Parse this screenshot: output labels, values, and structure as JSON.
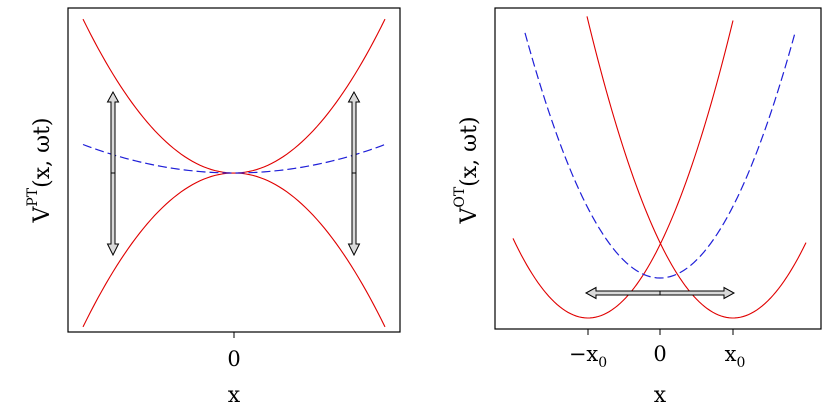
{
  "left_panel": {
    "ylabel_base": "V",
    "ylabel_sup": "PT",
    "ylabel_args": "(x, ωt)",
    "xtick_zero": "0",
    "xlabel": "x"
  },
  "right_panel": {
    "ylabel_base": "V",
    "ylabel_sup": "OT",
    "ylabel_args": "(x, ωt)",
    "xtick_neg_base": "−x",
    "xtick_neg_sub": "0",
    "xtick_zero": "0",
    "xtick_pos_base": "x",
    "xtick_pos_sub": "0",
    "xlabel": "x"
  },
  "colors": {
    "solid_curves": "#e00000",
    "dashed_curve": "#1f1fd8",
    "arrows_fill": "#d9d9d9"
  }
}
